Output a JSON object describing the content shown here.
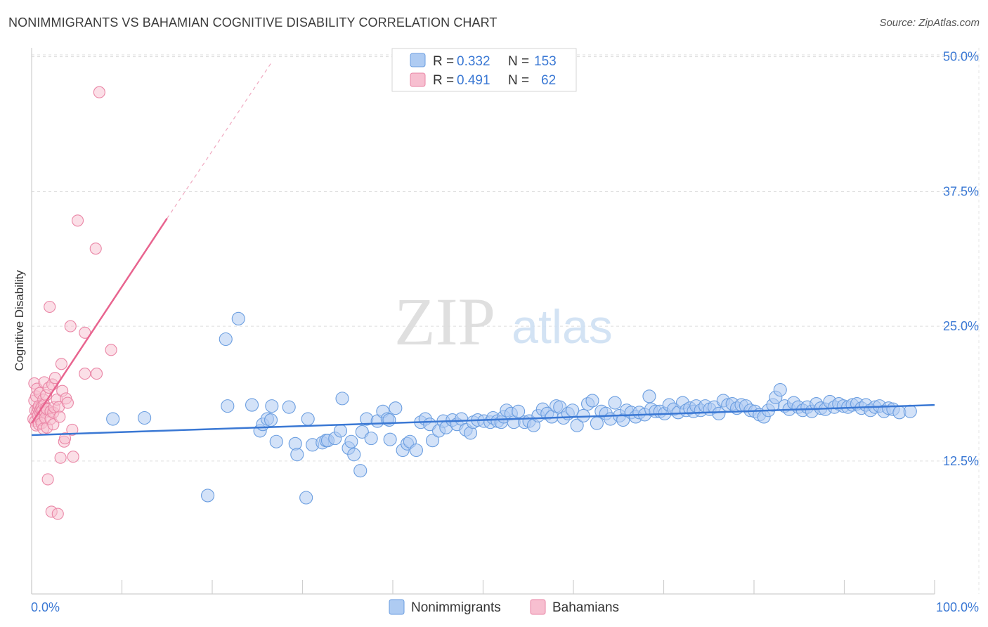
{
  "title": "NONIMMIGRANTS VS BAHAMIAN COGNITIVE DISABILITY CORRELATION CHART",
  "source": "Source: ZipAtlas.com",
  "watermark": {
    "zip": "ZIP",
    "atlas": "atlas"
  },
  "legend_box": {
    "rows": [
      {
        "r_label": "R =",
        "r_value": "0.332",
        "n_label": "N =",
        "n_value": "153",
        "fill": "#aecbf2",
        "stroke": "#6b9ee0"
      },
      {
        "r_label": "R =",
        "r_value": "0.491",
        "n_label": "N =",
        "n_value": "62",
        "fill": "#f7bfd0",
        "stroke": "#ea86a6"
      }
    ]
  },
  "bottom_legend": [
    {
      "label": "Nonimmigrants",
      "fill": "#aecbf2",
      "stroke": "#6b9ee0"
    },
    {
      "label": "Bahamians",
      "fill": "#f7bfd0",
      "stroke": "#ea86a6"
    }
  ],
  "colors": {
    "blue": "#3a78d4",
    "pink": "#e8648f",
    "accent_text": "#3a78d4"
  },
  "chart_data": {
    "type": "scatter",
    "title": "NONIMMIGRANTS VS BAHAMIAN COGNITIVE DISABILITY CORRELATION CHART",
    "xlabel": "",
    "ylabel": "Cognitive Disability",
    "xlim": [
      0,
      100
    ],
    "ylim": [
      0,
      52
    ],
    "x_tick_labels": [
      "0.0%",
      "100.0%"
    ],
    "y_ticks": [
      12.5,
      25.0,
      37.5,
      50.0
    ],
    "y_tick_labels": [
      "12.5%",
      "25.0%",
      "37.5%",
      "50.0%"
    ],
    "grid": true,
    "legend_position": "top-center",
    "series": [
      {
        "name": "Nonimmigrants",
        "R": 0.332,
        "N": 153,
        "trend": {
          "x": [
            0,
            100
          ],
          "y": [
            14.9,
            17.7
          ]
        },
        "points": [
          [
            9,
            16.4
          ],
          [
            12.5,
            16.5
          ],
          [
            19.5,
            9.3
          ],
          [
            21.5,
            23.8
          ],
          [
            21.7,
            17.6
          ],
          [
            22.9,
            25.7
          ],
          [
            24.4,
            17.7
          ],
          [
            25.3,
            15.3
          ],
          [
            25.6,
            15.9
          ],
          [
            26.1,
            16.4
          ],
          [
            26.5,
            16.3
          ],
          [
            26.6,
            17.6
          ],
          [
            27.1,
            14.3
          ],
          [
            28.5,
            17.5
          ],
          [
            29.2,
            14.1
          ],
          [
            29.4,
            13.1
          ],
          [
            30.4,
            9.1
          ],
          [
            30.6,
            16.4
          ],
          [
            31.1,
            14.0
          ],
          [
            32.2,
            14.2
          ],
          [
            32.6,
            14.4
          ],
          [
            32.8,
            14.4
          ],
          [
            33.6,
            14.6
          ],
          [
            34.2,
            15.3
          ],
          [
            34.4,
            18.3
          ],
          [
            35.1,
            13.7
          ],
          [
            35.4,
            14.3
          ],
          [
            35.7,
            13.1
          ],
          [
            36.4,
            11.6
          ],
          [
            36.6,
            15.2
          ],
          [
            37.1,
            16.4
          ],
          [
            37.6,
            14.6
          ],
          [
            38.3,
            16.2
          ],
          [
            38.9,
            17.1
          ],
          [
            39.4,
            16.4
          ],
          [
            39.7,
            14.5
          ],
          [
            39.6,
            16.3
          ],
          [
            40.3,
            17.4
          ],
          [
            41.1,
            13.5
          ],
          [
            41.6,
            14.1
          ],
          [
            41.9,
            14.3
          ],
          [
            42.6,
            13.5
          ],
          [
            43.1,
            16.1
          ],
          [
            43.6,
            16.4
          ],
          [
            44.1,
            15.9
          ],
          [
            44.4,
            14.4
          ],
          [
            45.1,
            15.3
          ],
          [
            45.6,
            16.2
          ],
          [
            45.9,
            15.6
          ],
          [
            46.6,
            16.3
          ],
          [
            47.1,
            15.9
          ],
          [
            47.6,
            16.4
          ],
          [
            48.1,
            15.4
          ],
          [
            48.6,
            15.1
          ],
          [
            48.9,
            16.1
          ],
          [
            49.4,
            16.3
          ],
          [
            50.1,
            16.2
          ],
          [
            50.8,
            16.1
          ],
          [
            51.1,
            16.5
          ],
          [
            51.6,
            16.2
          ],
          [
            52.0,
            16.1
          ],
          [
            52.3,
            16.6
          ],
          [
            52.6,
            17.2
          ],
          [
            53.1,
            16.9
          ],
          [
            53.4,
            16.1
          ],
          [
            53.9,
            17.1
          ],
          [
            54.6,
            16.1
          ],
          [
            55.1,
            16.2
          ],
          [
            55.6,
            15.8
          ],
          [
            56.1,
            16.7
          ],
          [
            56.6,
            17.3
          ],
          [
            57.1,
            16.9
          ],
          [
            57.6,
            16.6
          ],
          [
            58.1,
            17.6
          ],
          [
            58.5,
            17.5
          ],
          [
            58.9,
            16.5
          ],
          [
            59.4,
            16.9
          ],
          [
            59.9,
            17.2
          ],
          [
            60.4,
            15.8
          ],
          [
            61.1,
            16.7
          ],
          [
            61.6,
            17.8
          ],
          [
            62.1,
            18.1
          ],
          [
            62.6,
            16.0
          ],
          [
            63.1,
            17.1
          ],
          [
            63.6,
            16.9
          ],
          [
            64.1,
            16.4
          ],
          [
            64.6,
            17.9
          ],
          [
            65.1,
            16.7
          ],
          [
            65.5,
            16.3
          ],
          [
            65.9,
            17.2
          ],
          [
            66.4,
            17.0
          ],
          [
            66.9,
            16.6
          ],
          [
            67.3,
            17.0
          ],
          [
            67.9,
            16.8
          ],
          [
            68.4,
            18.5
          ],
          [
            68.6,
            17.3
          ],
          [
            69.1,
            17.1
          ],
          [
            69.6,
            17.1
          ],
          [
            70.1,
            16.9
          ],
          [
            70.6,
            17.7
          ],
          [
            71.1,
            17.3
          ],
          [
            71.6,
            17.0
          ],
          [
            72.1,
            17.9
          ],
          [
            72.5,
            17.2
          ],
          [
            72.9,
            17.4
          ],
          [
            73.3,
            17.1
          ],
          [
            73.6,
            17.6
          ],
          [
            74.1,
            17.2
          ],
          [
            74.6,
            17.6
          ],
          [
            75.1,
            17.3
          ],
          [
            75.6,
            17.5
          ],
          [
            76.1,
            16.9
          ],
          [
            76.6,
            18.1
          ],
          [
            77.1,
            17.7
          ],
          [
            77.6,
            17.8
          ],
          [
            78.1,
            17.4
          ],
          [
            78.6,
            17.7
          ],
          [
            79.1,
            17.6
          ],
          [
            79.6,
            17.2
          ],
          [
            80.1,
            17.1
          ],
          [
            80.6,
            16.8
          ],
          [
            81.1,
            16.6
          ],
          [
            81.6,
            17.2
          ],
          [
            82.1,
            17.7
          ],
          [
            82.4,
            18.4
          ],
          [
            82.9,
            19.1
          ],
          [
            83.4,
            17.6
          ],
          [
            83.9,
            17.3
          ],
          [
            84.4,
            17.9
          ],
          [
            84.9,
            17.5
          ],
          [
            85.4,
            17.2
          ],
          [
            85.9,
            17.5
          ],
          [
            86.4,
            17.1
          ],
          [
            86.9,
            17.8
          ],
          [
            87.4,
            17.4
          ],
          [
            87.9,
            17.3
          ],
          [
            88.4,
            18.0
          ],
          [
            88.9,
            17.5
          ],
          [
            89.4,
            17.8
          ],
          [
            89.9,
            17.6
          ],
          [
            90.4,
            17.5
          ],
          [
            90.9,
            17.7
          ],
          [
            91.4,
            17.8
          ],
          [
            91.9,
            17.4
          ],
          [
            92.4,
            17.7
          ],
          [
            92.9,
            17.2
          ],
          [
            93.4,
            17.5
          ],
          [
            93.9,
            17.6
          ],
          [
            94.4,
            17.1
          ],
          [
            94.9,
            17.4
          ],
          [
            95.4,
            17.3
          ],
          [
            96.1,
            17.0
          ],
          [
            97.3,
            17.1
          ]
        ]
      },
      {
        "name": "Bahamians",
        "R": 0.491,
        "N": 62,
        "trend": {
          "x": [
            0,
            15.0
          ],
          "y": [
            16.0,
            35.0
          ],
          "extended_to": {
            "x": 26.6,
            "y": 49.5
          }
        },
        "points": [
          [
            0.2,
            16.4
          ],
          [
            0.3,
            18.1
          ],
          [
            0.3,
            19.7
          ],
          [
            0.4,
            17.2
          ],
          [
            0.4,
            16.2
          ],
          [
            0.5,
            15.8
          ],
          [
            0.5,
            18.5
          ],
          [
            0.6,
            17.0
          ],
          [
            0.6,
            19.2
          ],
          [
            0.7,
            17.4
          ],
          [
            0.7,
            16.7
          ],
          [
            0.8,
            17.6
          ],
          [
            0.8,
            15.9
          ],
          [
            0.9,
            17.1
          ],
          [
            0.9,
            18.8
          ],
          [
            1.0,
            17.3
          ],
          [
            1.0,
            16.3
          ],
          [
            1.1,
            17.5
          ],
          [
            1.1,
            16.0
          ],
          [
            1.2,
            17.2
          ],
          [
            1.3,
            18.2
          ],
          [
            1.3,
            15.5
          ],
          [
            1.4,
            19.8
          ],
          [
            1.4,
            17.7
          ],
          [
            1.5,
            17.0
          ],
          [
            1.5,
            16.5
          ],
          [
            1.6,
            17.4
          ],
          [
            1.6,
            18.6
          ],
          [
            1.7,
            15.6
          ],
          [
            1.7,
            17.3
          ],
          [
            1.8,
            10.8
          ],
          [
            1.9,
            19.3
          ],
          [
            2.0,
            26.8
          ],
          [
            2.1,
            17.1
          ],
          [
            2.1,
            16.4
          ],
          [
            2.2,
            7.8
          ],
          [
            2.3,
            19.6
          ],
          [
            2.4,
            17.0
          ],
          [
            2.4,
            15.9
          ],
          [
            2.5,
            17.5
          ],
          [
            2.6,
            20.2
          ],
          [
            2.8,
            18.2
          ],
          [
            2.9,
            7.6
          ],
          [
            3.0,
            17.5
          ],
          [
            3.1,
            16.6
          ],
          [
            3.2,
            12.8
          ],
          [
            3.3,
            21.5
          ],
          [
            3.4,
            19.0
          ],
          [
            3.6,
            14.3
          ],
          [
            3.7,
            14.6
          ],
          [
            3.8,
            18.3
          ],
          [
            4.0,
            17.9
          ],
          [
            4.3,
            25.0
          ],
          [
            4.5,
            15.4
          ],
          [
            4.6,
            12.9
          ],
          [
            5.1,
            34.8
          ],
          [
            5.9,
            24.4
          ],
          [
            5.9,
            20.6
          ],
          [
            7.1,
            32.2
          ],
          [
            7.2,
            20.6
          ],
          [
            7.5,
            46.7
          ],
          [
            8.8,
            22.8
          ]
        ]
      }
    ]
  }
}
